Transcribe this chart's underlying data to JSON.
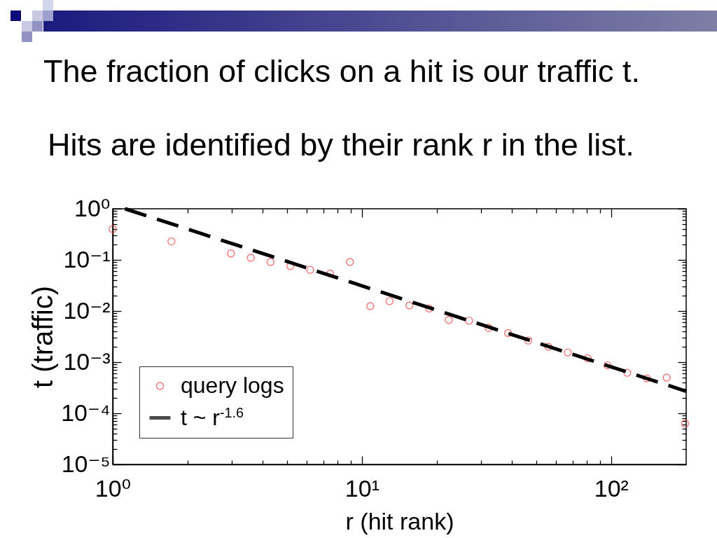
{
  "chart_data": {
    "type": "scatter",
    "title": "The fraction of clicks on a hit is our traffic t.",
    "subtitle": "Hits are identified by their rank r in the list.",
    "xlabel": "r (hit rank)",
    "ylabel": "t (traffic)",
    "log": "xy",
    "grid": false,
    "legend": "bottom left",
    "xlim": [
      1,
      200
    ],
    "ylim": [
      1e-05,
      1
    ],
    "xticks": [
      {
        "value": 1,
        "label": "10⁰"
      },
      {
        "value": 2,
        "label": null
      },
      {
        "value": 3,
        "label": null
      },
      {
        "value": 4,
        "label": null
      },
      {
        "value": 5,
        "label": null
      },
      {
        "value": 6,
        "label": null
      },
      {
        "value": 7,
        "label": null
      },
      {
        "value": 8,
        "label": null
      },
      {
        "value": 9,
        "label": null
      },
      {
        "value": 10,
        "label": "10¹"
      },
      {
        "value": 20,
        "label": null
      },
      {
        "value": 30,
        "label": null
      },
      {
        "value": 40,
        "label": null
      },
      {
        "value": 50,
        "label": null
      },
      {
        "value": 60,
        "label": null
      },
      {
        "value": 70,
        "label": null
      },
      {
        "value": 80,
        "label": null
      },
      {
        "value": 90,
        "label": null
      },
      {
        "value": 100,
        "label": "10²"
      }
    ],
    "yticks": [
      {
        "value": 1e-05,
        "label": "10⁻⁵"
      },
      {
        "value": 2e-05,
        "label": null
      },
      {
        "value": 3e-05,
        "label": null
      },
      {
        "value": 4e-05,
        "label": null
      },
      {
        "value": 5e-05,
        "label": null
      },
      {
        "value": 6e-05,
        "label": null
      },
      {
        "value": 7e-05,
        "label": null
      },
      {
        "value": 8e-05,
        "label": null
      },
      {
        "value": 9e-05,
        "label": null
      },
      {
        "value": 0.0001,
        "label": "10⁻⁴"
      },
      {
        "value": 0.0002,
        "label": null
      },
      {
        "value": 0.0003,
        "label": null
      },
      {
        "value": 0.0004,
        "label": null
      },
      {
        "value": 0.0005,
        "label": null
      },
      {
        "value": 0.0006,
        "label": null
      },
      {
        "value": 0.0007,
        "label": null
      },
      {
        "value": 0.0008,
        "label": null
      },
      {
        "value": 0.0009,
        "label": null
      },
      {
        "value": 0.001,
        "label": "10⁻³"
      },
      {
        "value": 0.002,
        "label": null
      },
      {
        "value": 0.003,
        "label": null
      },
      {
        "value": 0.004,
        "label": null
      },
      {
        "value": 0.005,
        "label": null
      },
      {
        "value": 0.006,
        "label": null
      },
      {
        "value": 0.007,
        "label": null
      },
      {
        "value": 0.008,
        "label": null
      },
      {
        "value": 0.009,
        "label": null
      },
      {
        "value": 0.01,
        "label": "10⁻²"
      },
      {
        "value": 0.02,
        "label": null
      },
      {
        "value": 0.03,
        "label": null
      },
      {
        "value": 0.04,
        "label": null
      },
      {
        "value": 0.05,
        "label": null
      },
      {
        "value": 0.06,
        "label": null
      },
      {
        "value": 0.07,
        "label": null
      },
      {
        "value": 0.08,
        "label": null
      },
      {
        "value": 0.09,
        "label": null
      },
      {
        "value": 0.1,
        "label": "10⁻¹"
      },
      {
        "value": 0.2,
        "label": null
      },
      {
        "value": 0.3,
        "label": null
      },
      {
        "value": 0.4,
        "label": null
      },
      {
        "value": 0.5,
        "label": null
      },
      {
        "value": 0.6,
        "label": null
      },
      {
        "value": 0.7,
        "label": null
      },
      {
        "value": 0.8,
        "label": null
      },
      {
        "value": 0.9,
        "label": null
      },
      {
        "value": 1,
        "label": "10⁰"
      }
    ],
    "series": [
      {
        "name": "query logs",
        "marker": "circle",
        "color": "#f03c3c",
        "x": [
          1,
          1.72,
          2.98,
          3.58,
          4.3,
          5.16,
          6.2,
          7.45,
          8.95,
          10.8,
          12.9,
          15.5,
          18.6,
          22.3,
          26.9,
          32.2,
          38.6,
          46.5,
          56,
          67,
          80.5,
          96.7,
          116,
          139,
          167,
          198
        ],
        "values": [
          0.4,
          0.23,
          0.134,
          0.11,
          0.091,
          0.076,
          0.064,
          0.054,
          0.091,
          0.0125,
          0.0156,
          0.0129,
          0.0112,
          0.0067,
          0.0065,
          0.0047,
          0.0037,
          0.00265,
          0.002,
          0.00155,
          0.00119,
          0.00087,
          0.00062,
          0.00048,
          0.0005,
          6.3e-05
        ]
      },
      {
        "name": "t ~ r$^{-1.6}$",
        "type": "line",
        "marker": "none",
        "line_style": "dashed",
        "color": "#000000",
        "x": [
          1.12,
          200
        ],
        "values": [
          1,
          0.00027
        ]
      }
    ]
  }
}
